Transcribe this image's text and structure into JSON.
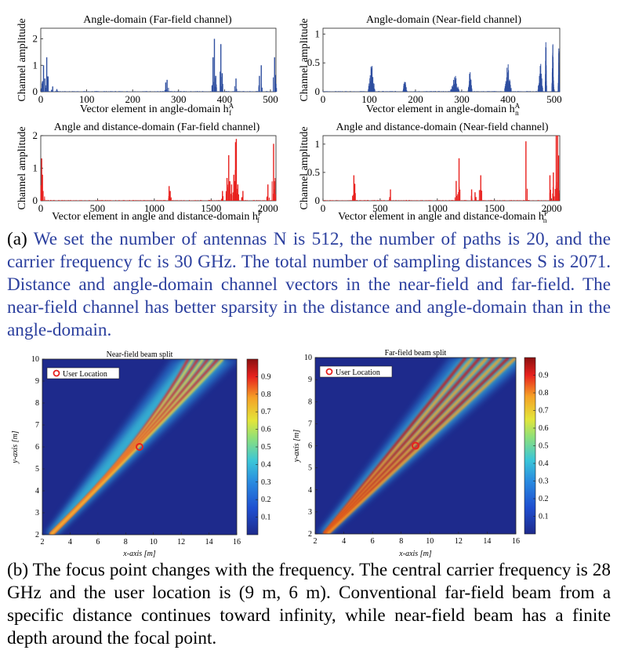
{
  "chart_data": [
    {
      "type": "bar",
      "title": "Angle-domain (Far-field channel)",
      "xlabel": "Vector element in angle-domain h",
      "xlabel_sup": "A",
      "xlabel_sub": "f",
      "ylabel": "Channel amplitude",
      "xlim": [
        0,
        512
      ],
      "ylim": [
        0,
        2.4
      ],
      "xticks": [
        "0",
        "100",
        "200",
        "300",
        "400",
        "500"
      ],
      "yticks": [
        "0",
        "1",
        "2"
      ],
      "color": "#2f4fa0",
      "peaks": [
        [
          4,
          0.4
        ],
        [
          6,
          1.0
        ],
        [
          9,
          0.5
        ],
        [
          13,
          1.3
        ],
        [
          26,
          0.2
        ],
        [
          35,
          0.1
        ],
        [
          272,
          0.35
        ],
        [
          275,
          0.45
        ],
        [
          375,
          1.3
        ],
        [
          378,
          2.0
        ],
        [
          381,
          0.6
        ],
        [
          392,
          1.8
        ],
        [
          395,
          0.7
        ],
        [
          425,
          0.5
        ],
        [
          476,
          0.6
        ],
        [
          480,
          1.0
        ],
        [
          509,
          1.3
        ],
        [
          512,
          0.3
        ]
      ]
    },
    {
      "type": "bar",
      "title": "Angle-domain (Near-field channel)",
      "xlabel": "Vector element in angle-domain h",
      "xlabel_sup": "A",
      "xlabel_sub": "n",
      "ylabel": "Channel amplitude",
      "xlim": [
        0,
        512
      ],
      "ylim": [
        0,
        1.1
      ],
      "xticks": [
        "0",
        "100",
        "200",
        "300",
        "400",
        "500"
      ],
      "yticks": [
        "0",
        "0.5",
        "1"
      ],
      "color": "#2f4fa0",
      "clusters": [
        [
          105,
          14,
          0.5
        ],
        [
          177,
          8,
          0.25
        ],
        [
          285,
          18,
          0.3
        ],
        [
          318,
          8,
          0.4
        ],
        [
          400,
          14,
          0.5
        ],
        [
          470,
          10,
          0.55
        ],
        [
          482,
          3,
          0.95
        ],
        [
          497,
          4,
          0.85
        ],
        [
          510,
          3,
          0.8
        ]
      ]
    },
    {
      "type": "bar",
      "title": "Angle and distance-domain (Far-field channel)",
      "xlabel": "Vector element in angle and distance-domain h",
      "xlabel_sup": "P",
      "xlabel_sub": "f",
      "ylabel": "Channel amplitude",
      "xlim": [
        0,
        2071
      ],
      "ylim": [
        0,
        2.0
      ],
      "xticks": [
        "0",
        "500",
        "1000",
        "1500",
        "2000"
      ],
      "yticks": [
        "0",
        "1",
        "2"
      ],
      "color": "#e8211e",
      "peaks": [
        [
          8,
          1.3
        ],
        [
          15,
          0.8
        ],
        [
          20,
          0.3
        ],
        [
          1130,
          0.45
        ],
        [
          1140,
          0.3
        ],
        [
          1600,
          0.3
        ],
        [
          1640,
          0.7
        ],
        [
          1655,
          1.4
        ],
        [
          1665,
          0.6
        ],
        [
          1680,
          0.5
        ],
        [
          1700,
          0.8
        ],
        [
          1715,
          1.8
        ],
        [
          1722,
          1.9
        ],
        [
          1735,
          0.5
        ],
        [
          1780,
          0.3
        ],
        [
          2000,
          0.5
        ],
        [
          2050,
          1.75
        ],
        [
          2060,
          0.6
        ]
      ]
    },
    {
      "type": "bar",
      "title": "Angle and distance-domain (Near-field channel)",
      "xlabel": "Vector element in angle and distance-domain h",
      "xlabel_sup": "P",
      "xlabel_sub": "n",
      "ylabel": "Channel amplitude",
      "xlim": [
        0,
        2071
      ],
      "ylim": [
        0,
        1.15
      ],
      "xticks": [
        "0",
        "500",
        "1000",
        "1500",
        "2000"
      ],
      "yticks": [
        "0",
        "0.5",
        "1"
      ],
      "color": "#e8211e",
      "peaks": [
        [
          270,
          0.45
        ],
        [
          278,
          0.3
        ],
        [
          590,
          0.2
        ],
        [
          1165,
          0.35
        ],
        [
          1190,
          0.75
        ],
        [
          1300,
          0.2
        ],
        [
          1330,
          0.15
        ],
        [
          1380,
          0.45
        ],
        [
          1775,
          1.05
        ],
        [
          1985,
          0.45
        ],
        [
          2015,
          0.5
        ],
        [
          2040,
          1.15
        ],
        [
          2052,
          1.15
        ],
        [
          2060,
          0.8
        ]
      ]
    },
    {
      "type": "heatmap",
      "title": "Near-field beam split",
      "xlabel": "x-axis [m]",
      "ylabel": "y-axis [m]",
      "xlim": [
        2,
        16
      ],
      "ylim": [
        2,
        10
      ],
      "xticks": [
        "2",
        "4",
        "6",
        "8",
        "10",
        "12",
        "14",
        "16"
      ],
      "yticks": [
        "2",
        "3",
        "4",
        "5",
        "6",
        "7",
        "8",
        "9",
        "10"
      ],
      "colorbar_ticks": [
        "0.1",
        "0.2",
        "0.3",
        "0.4",
        "0.5",
        "0.6",
        "0.7",
        "0.8",
        "0.9"
      ],
      "legend": "User Location",
      "user_location": [
        9,
        6
      ],
      "beam_origin": [
        2.5,
        2
      ],
      "beam_end_spread": [
        [
          12.5,
          10
        ],
        [
          15,
          10
        ]
      ]
    },
    {
      "type": "heatmap",
      "title": "Far-field beam split",
      "xlabel": "x-axis [m]",
      "ylabel": "y-axis [m]",
      "xlim": [
        2,
        16
      ],
      "ylim": [
        2,
        10
      ],
      "xticks": [
        "2",
        "4",
        "6",
        "8",
        "10",
        "12",
        "14",
        "16"
      ],
      "yticks": [
        "2",
        "3",
        "4",
        "5",
        "6",
        "7",
        "8",
        "9",
        "10"
      ],
      "colorbar_ticks": [
        "0.1",
        "0.2",
        "0.3",
        "0.4",
        "0.5",
        "0.6",
        "0.7",
        "0.8",
        "0.9"
      ],
      "legend": "User Location",
      "user_location": [
        9,
        6
      ],
      "beam_origin": [
        2.5,
        2
      ],
      "beam_end_spread": [
        [
          12.5,
          10
        ],
        [
          16,
          10
        ]
      ]
    }
  ],
  "colors": {
    "caption_blue": "#2b3f9e",
    "bar_blue": "#2f4fa0",
    "bar_red": "#e8211e",
    "heat_bg": "#1e2a8c",
    "marker": "#e8211e"
  },
  "captions": {
    "a_label": "(a)",
    "a_text": "We set the number of antennas N is 512, the number of paths is 20, and the carrier frequency fc is 30 GHz. The total number of sampling distances S is 2071. Distance and angle-domain channel vectors in the near-field and far-field. The near-field channel has better sparsity in the distance and angle-domain than in the angle-domain.",
    "b_label": "(b)",
    "b_text": "The focus point changes with the frequency. The central carrier frequency is 28 GHz and the user location is (9 m, 6 m). Conventional far-field beam from a specific distance continues toward infinity, while near-field beam has a finite depth around the focal point."
  }
}
